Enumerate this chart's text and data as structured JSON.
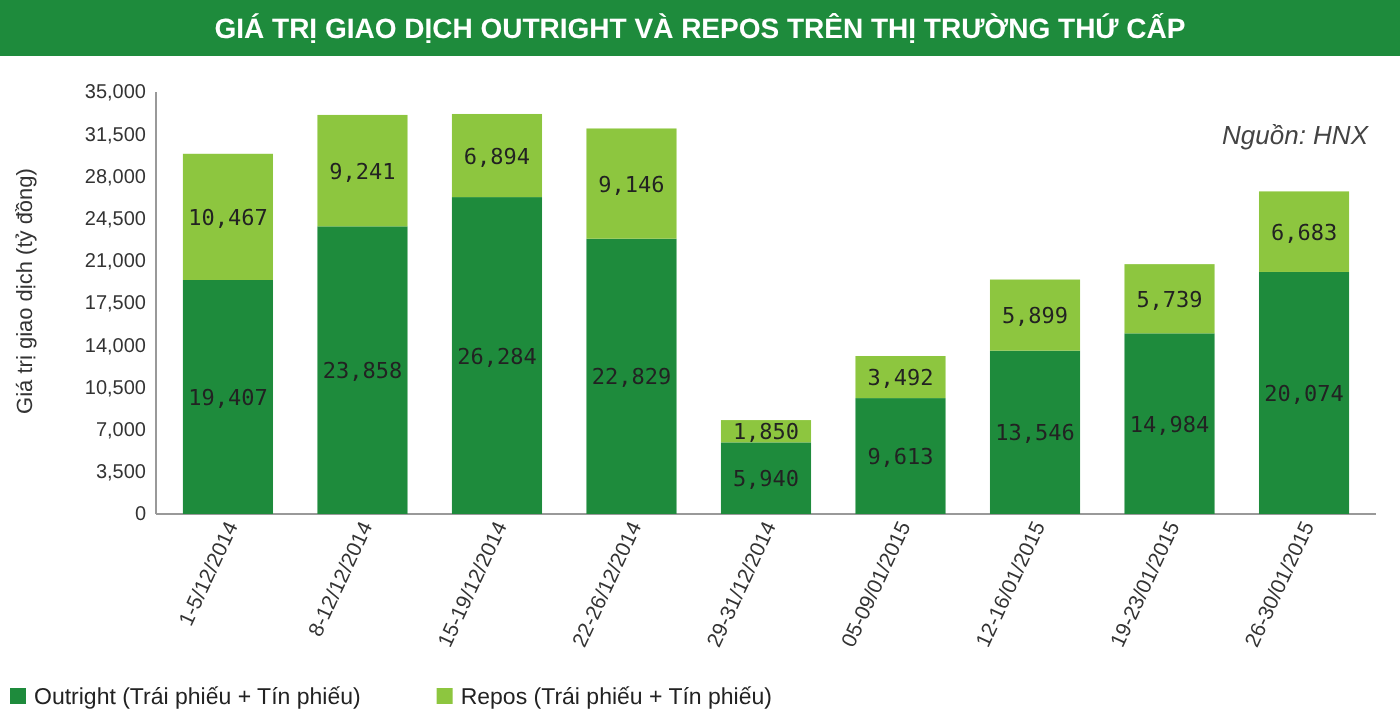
{
  "chart_data": {
    "type": "bar",
    "title": "GIÁ TRỊ GIAO DỊCH OUTRIGHT VÀ REPOS TRÊN THỊ TRƯỜNG THỨ CẤP",
    "ylabel": "Giá trị giao dịch (tỷ đồng)",
    "annotations": [
      "Nguồn: HNX"
    ],
    "categories": [
      "1-5/12/2014",
      "8-12/12/2014",
      "15-19/12/2014",
      "22-26/12/2014",
      "29-31/12/2014",
      "05-09/01/2015",
      "12-16/01/2015",
      "19-23/01/2015",
      "26-30/01/2015"
    ],
    "stacked": true,
    "legend": "bottom",
    "grid": false,
    "ylim": [
      0,
      35000
    ],
    "yticks": [
      {
        "value": 0,
        "label": "0"
      },
      {
        "value": 3500,
        "label": "3,500"
      },
      {
        "value": 7000,
        "label": "7,000"
      },
      {
        "value": 10500,
        "label": "10,500"
      },
      {
        "value": 14000,
        "label": "14,000"
      },
      {
        "value": 17500,
        "label": "17,500"
      },
      {
        "value": 21000,
        "label": "21,000"
      },
      {
        "value": 24500,
        "label": "24,500"
      },
      {
        "value": 28000,
        "label": "28,000"
      },
      {
        "value": 31500,
        "label": "31,500"
      },
      {
        "value": 35000,
        "label": "35,000"
      }
    ],
    "series": [
      {
        "name": "Outright (Trái phiếu + Tín phiếu)",
        "color": "#1e8b3c",
        "values": [
          19407,
          23858,
          26284,
          22829,
          5940,
          9613,
          13546,
          14984,
          20074
        ],
        "value_labels": [
          "19,407",
          "23,858",
          "26,284",
          "22,829",
          "5,940",
          "9,613",
          "13,546",
          "14,984",
          "20,074"
        ]
      },
      {
        "name": "Repos (Trái phiếu + Tín phiếu)",
        "color": "#8dc63f",
        "values": [
          10467,
          9241,
          6894,
          9146,
          1850,
          3492,
          5899,
          5739,
          6683
        ],
        "value_labels": [
          "10,467",
          "9,241",
          "6,894",
          "9,146",
          "1,850",
          "3,492",
          "5,899",
          "5,739",
          "6,683"
        ]
      }
    ]
  }
}
